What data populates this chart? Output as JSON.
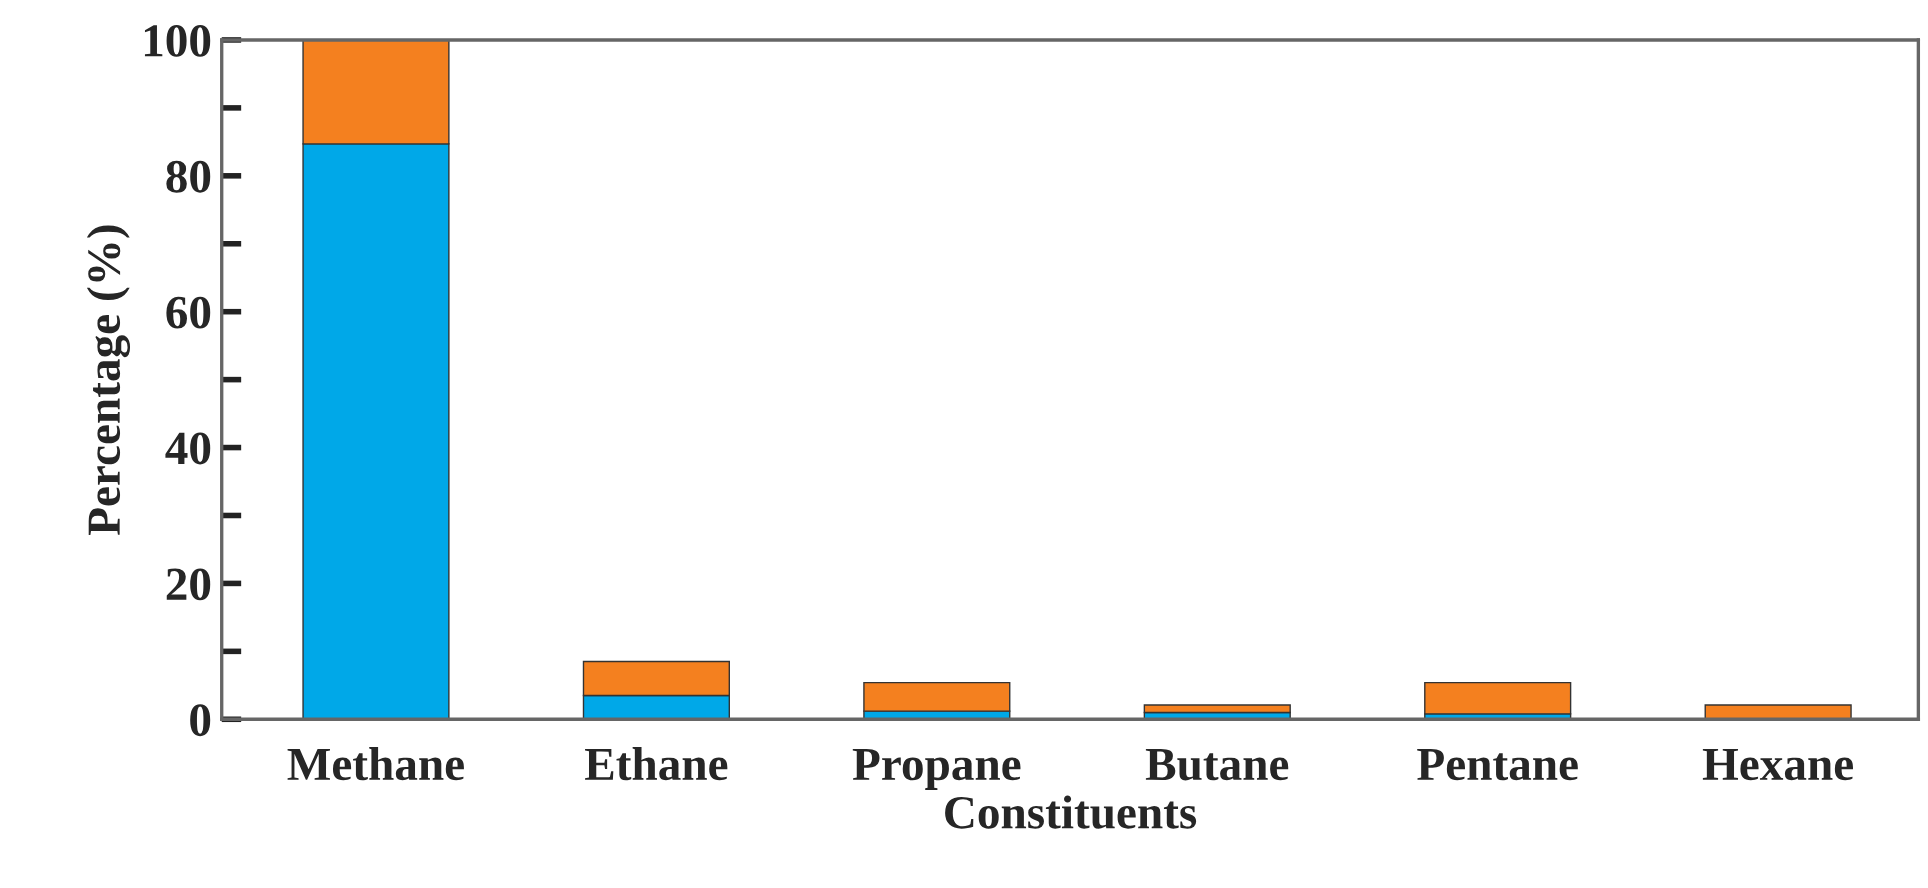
{
  "chart_data": {
    "type": "bar",
    "stacked": true,
    "xlabel": "Constituents",
    "ylabel": "Percentage (%)",
    "categories": [
      "Methane",
      "Ethane",
      "Propane",
      "Butane",
      "Pentane",
      "Hexane"
    ],
    "series": [
      {
        "color": "#00a8e8",
        "values": [
          84.7,
          3.5,
          1.2,
          1.0,
          0.8,
          0
        ]
      },
      {
        "color": "#f4801f",
        "values": [
          15.3,
          5.0,
          4.2,
          1.1,
          4.6,
          2.1
        ]
      }
    ],
    "ylim": [
      0,
      100
    ],
    "yticks": [
      0,
      {
        "value": 10,
        "label": null
      },
      20,
      {
        "value": 30,
        "label": null
      },
      40,
      {
        "value": 50,
        "label": null
      },
      60,
      {
        "value": 70,
        "label": null
      },
      80,
      {
        "value": 90,
        "label": null
      },
      100
    ],
    "grid": false
  }
}
